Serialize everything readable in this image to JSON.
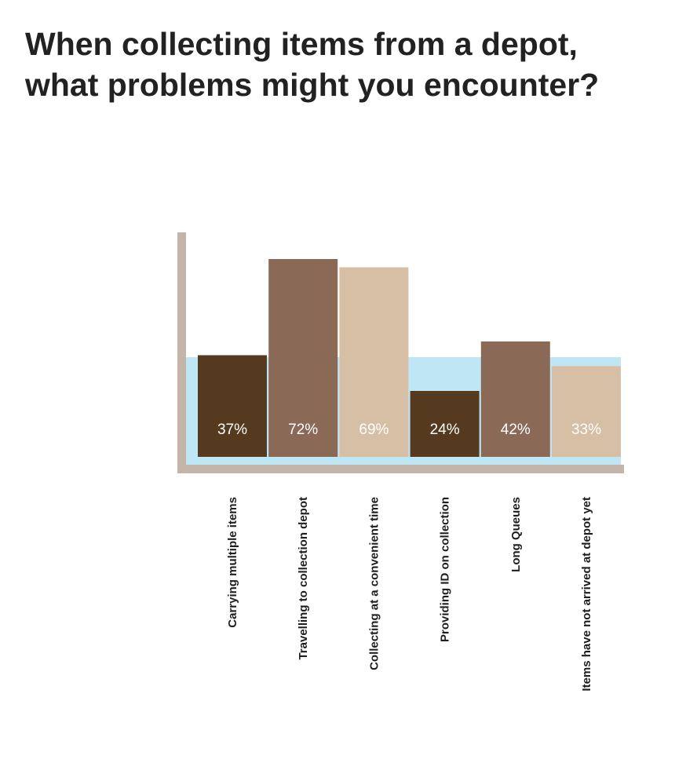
{
  "title": {
    "line1": "When collecting items from a depot,",
    "line2": "what problems might you encounter?"
  },
  "chart_data": {
    "type": "bar",
    "title": "When collecting items from a depot, what problems might you encounter?",
    "categories": [
      "Carrying multiple items",
      "Travelling to collection depot",
      "Collecting at a convenient time",
      "Providing ID on collection",
      "Long Queues",
      "Items have not arrived at depot yet"
    ],
    "values": [
      37,
      72,
      69,
      24,
      42,
      33
    ],
    "value_labels": [
      "37%",
      "72%",
      "69%",
      "24%",
      "42%",
      "33%"
    ],
    "unit": "%",
    "ylim": [
      0,
      100
    ],
    "xlabel": "",
    "ylabel": "",
    "grid": false,
    "colors": [
      "#553a1f",
      "#8b6957",
      "#d7bfa6",
      "#553a1f",
      "#8b6957",
      "#d7bfa6"
    ],
    "background_band_color": "#bfe6f5",
    "axis_color": "#c4b5a8"
  }
}
